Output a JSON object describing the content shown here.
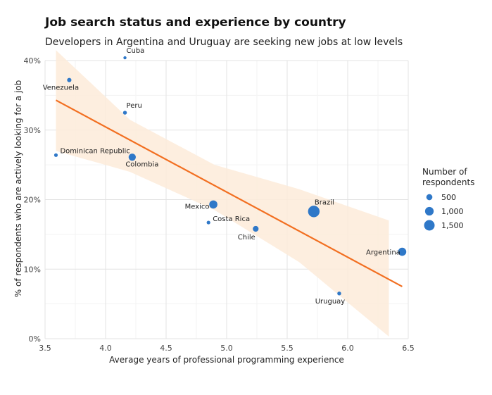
{
  "chart_data": {
    "type": "scatter",
    "title": "Job search status and experience by country",
    "subtitle": "Developers in Argentina and Uruguay are seeking new jobs at low levels",
    "xlabel": "Average years of professional programming experience",
    "ylabel": "% of respondents who are actively looking for a job",
    "xlim": [
      3.5,
      6.5
    ],
    "ylim": [
      0,
      40
    ],
    "x_ticks": [
      3.5,
      4.0,
      4.5,
      5.0,
      5.5,
      6.0,
      6.5
    ],
    "x_tick_labels": [
      "3.5",
      "4.0",
      "4.5",
      "5.0",
      "5.5",
      "6.0",
      "6.5"
    ],
    "y_ticks": [
      0,
      10,
      20,
      30,
      40
    ],
    "y_tick_labels": [
      "0%",
      "10%",
      "20%",
      "30%",
      "40%"
    ],
    "grid": true,
    "points": [
      {
        "label": "Cuba",
        "x": 4.16,
        "y": 40.4,
        "respondents": 40
      },
      {
        "label": "Venezuela",
        "x": 3.7,
        "y": 37.2,
        "respondents": 250
      },
      {
        "label": "Peru",
        "x": 4.16,
        "y": 32.5,
        "respondents": 200
      },
      {
        "label": "Dominican Republic",
        "x": 3.59,
        "y": 26.4,
        "respondents": 180
      },
      {
        "label": "Colombia",
        "x": 4.22,
        "y": 26.1,
        "respondents": 700
      },
      {
        "label": "Mexico",
        "x": 4.89,
        "y": 19.3,
        "respondents": 900
      },
      {
        "label": "Brazil",
        "x": 5.72,
        "y": 18.3,
        "respondents": 1800
      },
      {
        "label": "Costa Rica",
        "x": 4.85,
        "y": 16.7,
        "respondents": 180
      },
      {
        "label": "Chile",
        "x": 5.24,
        "y": 15.8,
        "respondents": 450
      },
      {
        "label": "Argentina",
        "x": 6.45,
        "y": 12.5,
        "respondents": 900
      },
      {
        "label": "Uruguay",
        "x": 5.93,
        "y": 6.5,
        "respondents": 200
      }
    ],
    "trend_line": {
      "x": [
        3.59,
        6.45
      ],
      "y": [
        34.3,
        7.5
      ],
      "color": "#f26f21"
    },
    "confidence_band": {
      "x": [
        3.59,
        4.2,
        4.9,
        5.6,
        6.34
      ],
      "upper": [
        41.5,
        31.5,
        25.0,
        21.5,
        17.0
      ],
      "lower": [
        27.0,
        24.0,
        18.5,
        11.0,
        0.3
      ],
      "color": "#fdebd9"
    },
    "point_color": "#2f78c8",
    "legend": {
      "title": "Number of respondents",
      "placement": "right",
      "entries": [
        {
          "label": "500",
          "value": 500
        },
        {
          "label": "1,000",
          "value": 1000
        },
        {
          "label": "1,500",
          "value": 1500
        }
      ]
    }
  }
}
